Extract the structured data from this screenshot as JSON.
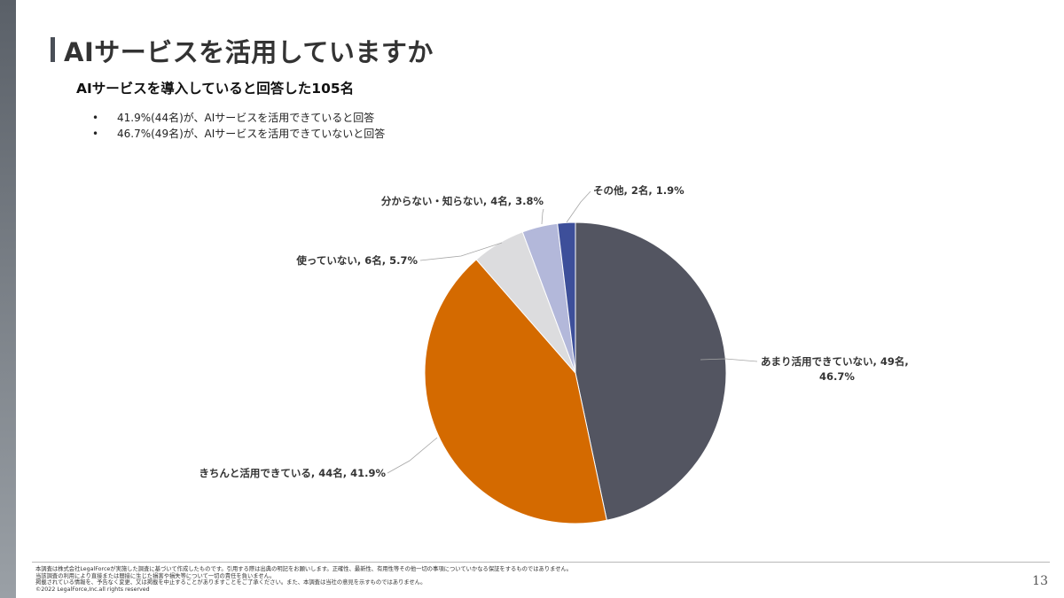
{
  "page": {
    "title": "AIサービスを活用していますか",
    "subtitle": "AIサービスを導入していると回答した105名",
    "bullets": [
      "41.9%(44名)が、AIサービスを活用できていると回答",
      "46.7%(49名)が、AIサービスを活用できていないと回答"
    ],
    "bullet_marker": "•",
    "page_number": "13"
  },
  "footer": {
    "lines": [
      "本調査は株式会社LegalForceが実施した調査に基づいて作成したものです。引用する際は出典の明記をお願いします。正確性、最新性、有用性等その他一切の事項についていかなる保証をするものではありません。",
      "当該調査の利用により直接または間接に生じた損害や損失等について一切の責任を負いません。",
      "掲載されている情報を、予告なく変更、又は掲載を中止することがありますことをご了承ください。また、本調査は当社の意見を示すものではありません。",
      "©2022 LegalForce,Inc.all rights reserved"
    ]
  },
  "colors": {
    "side_band": "#6b7178",
    "title_accent": "#4a4f57"
  },
  "chart_data": {
    "type": "pie",
    "start_angle_deg": 0,
    "direction": "clockwise",
    "slices": [
      {
        "label": "あまり活用できていない, 49名, 46.7%",
        "label_lines": [
          "あまり活用できていない, 49名,",
          "46.7%"
        ],
        "count": 49,
        "percent": 46.7,
        "color": "#535561"
      },
      {
        "label": "きちんと活用できている, 44名, 41.9%",
        "label_lines": [
          "きちんと活用できている, 44名, 41.9%"
        ],
        "count": 44,
        "percent": 41.9,
        "color": "#d46a00"
      },
      {
        "label": "使っていない, 6名, 5.7%",
        "label_lines": [
          "使っていない, 6名, 5.7%"
        ],
        "count": 6,
        "percent": 5.7,
        "color": "#dcdcde"
      },
      {
        "label": "分からない・知らない, 4名, 3.8%",
        "label_lines": [
          "分からない・知らない, 4名, 3.8%"
        ],
        "count": 4,
        "percent": 3.8,
        "color": "#b3b8da"
      },
      {
        "label": "その他, 2名, 1.9%",
        "label_lines": [
          "その他, 2名, 1.9%"
        ],
        "count": 2,
        "percent": 1.9,
        "color": "#3d4f9a"
      }
    ]
  }
}
